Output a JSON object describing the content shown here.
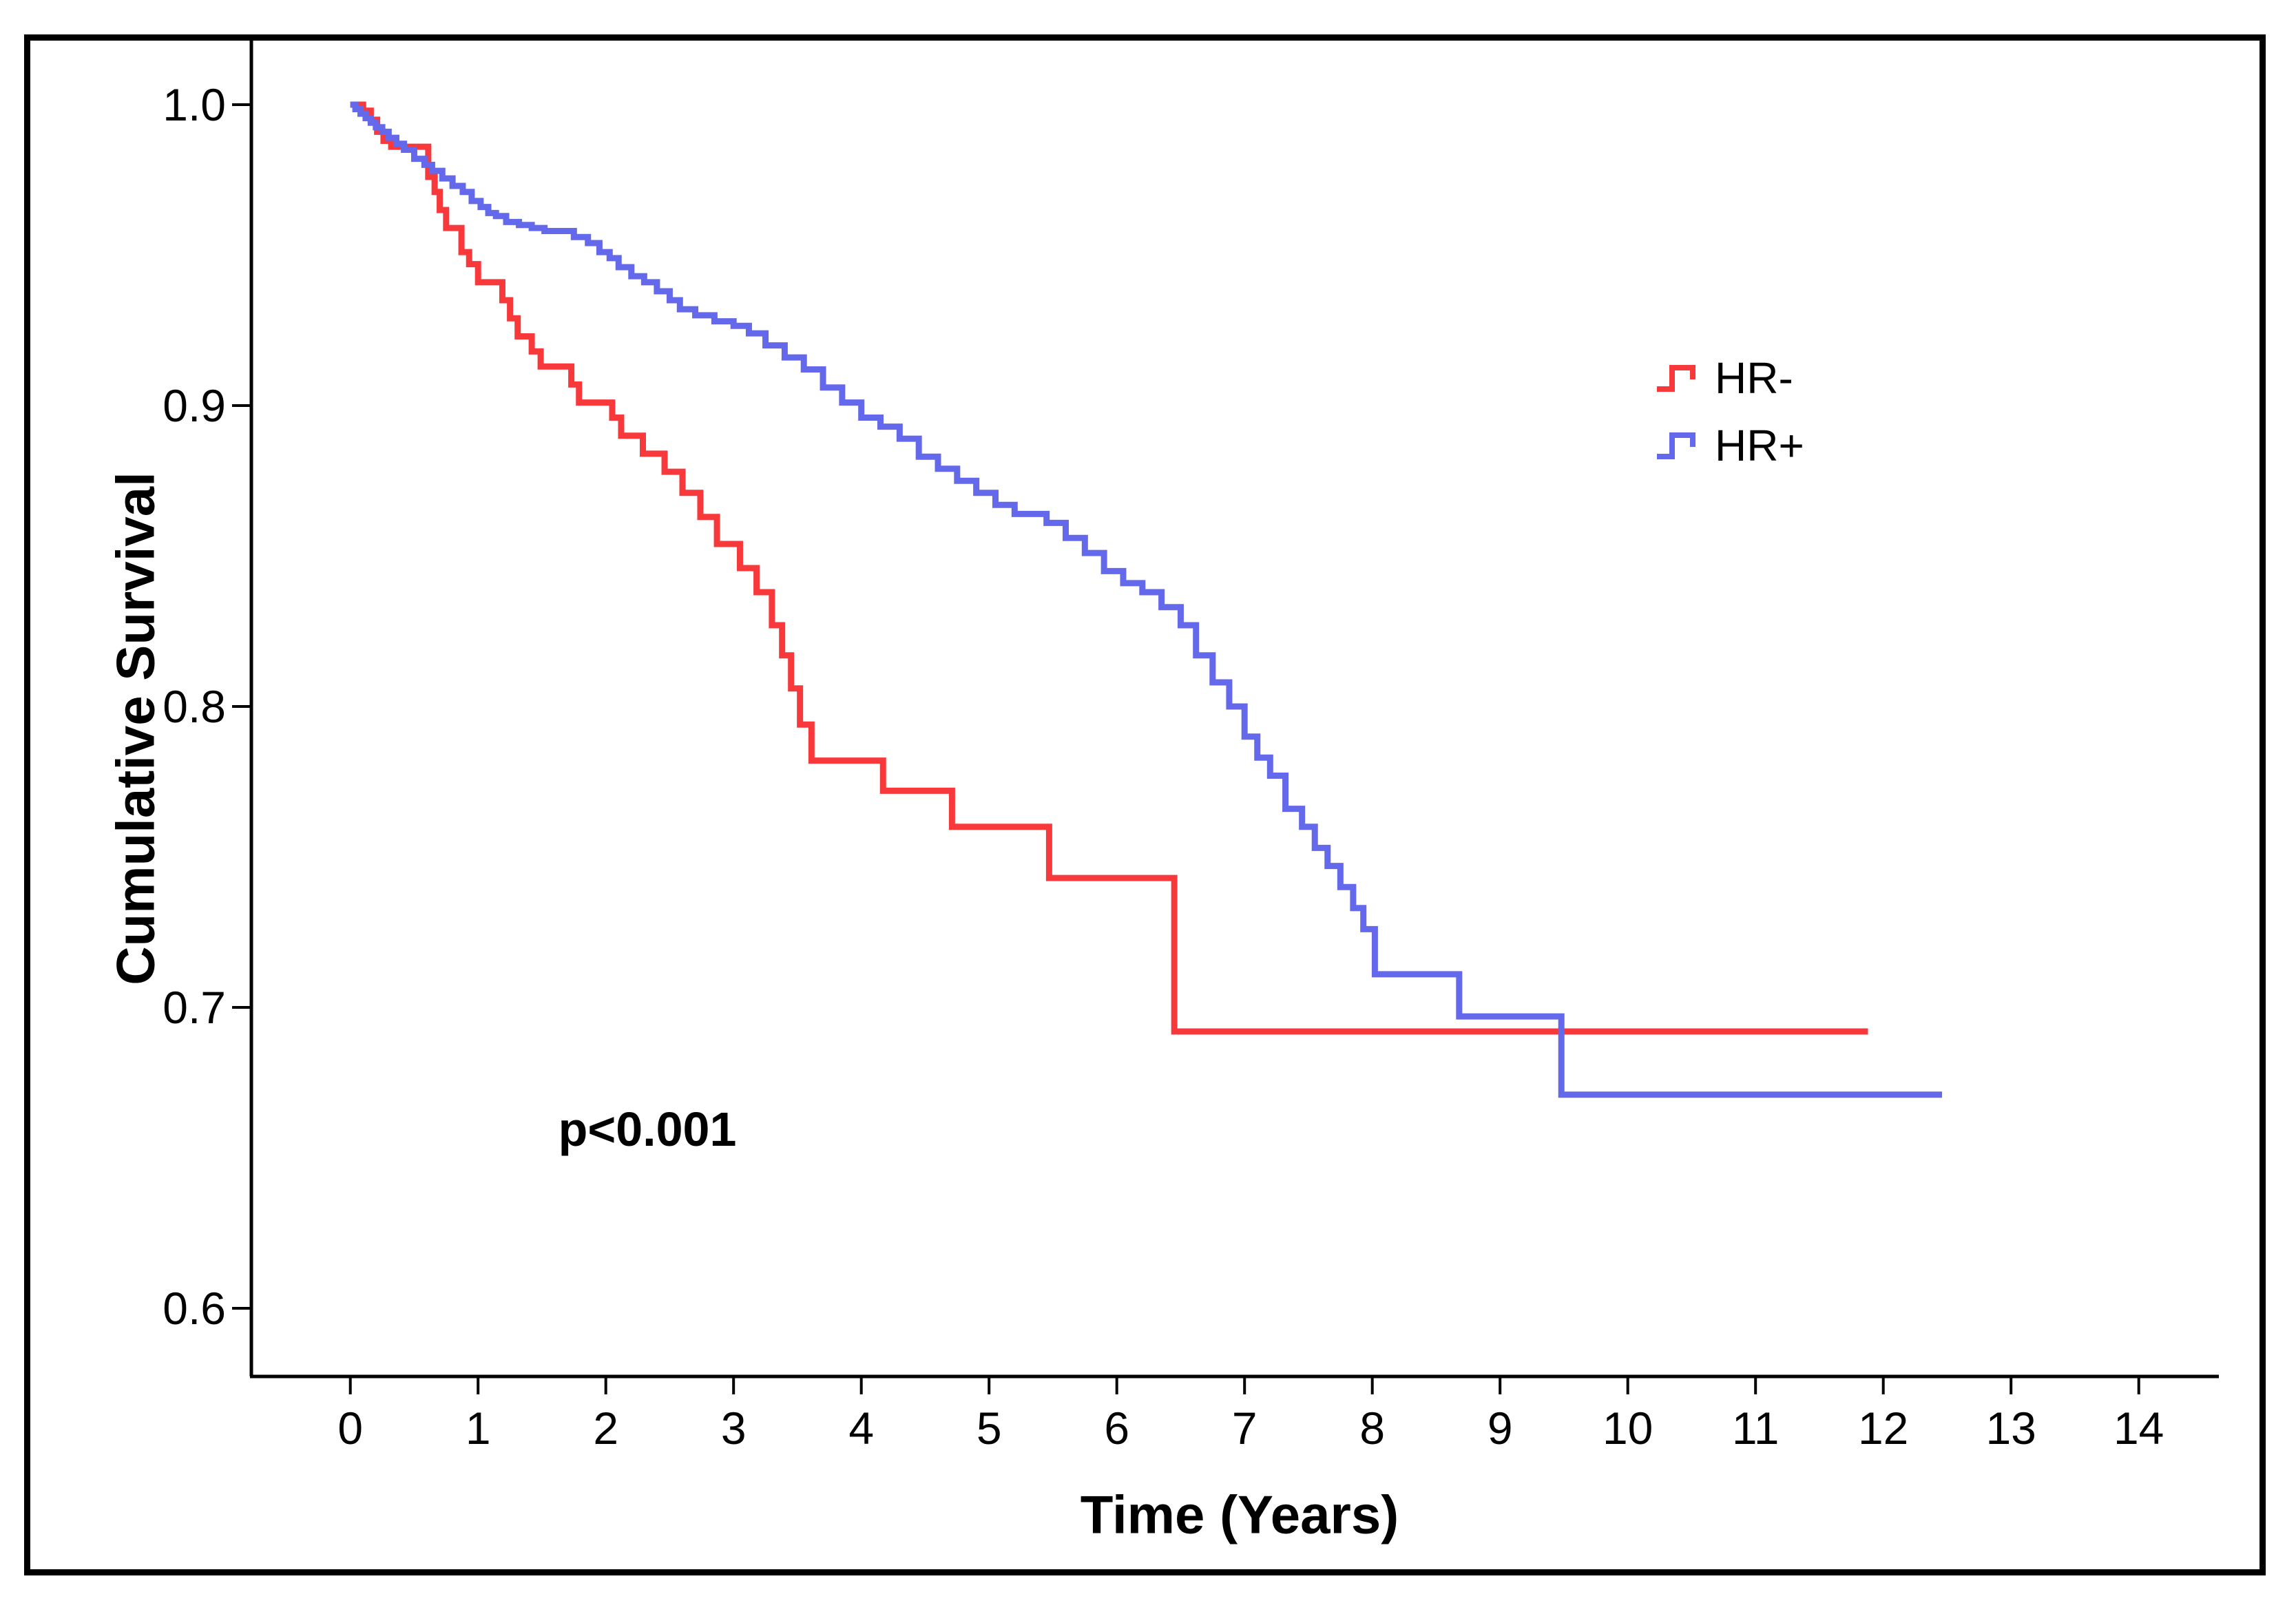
{
  "chart_data": {
    "type": "line",
    "subtype": "kaplan-meier-step-curves",
    "title": "",
    "xlabel": "Time (Years)",
    "ylabel": "Cumulative Survival",
    "annotation": "p<0.001",
    "grid": false,
    "legend_position": "upper-right-inside",
    "xlim": [
      -0.78,
      14.6
    ],
    "ylim": [
      0.578,
      1.023
    ],
    "x_ticks": [
      0,
      1,
      2,
      3,
      4,
      5,
      6,
      7,
      8,
      9,
      10,
      11,
      12,
      13,
      14
    ],
    "y_ticks": [
      1.0,
      0.9,
      0.8,
      0.7,
      0.6
    ],
    "series": [
      {
        "name": "HR-",
        "color": "#f8393b",
        "points": [
          [
            0,
            1.0
          ],
          [
            0.1,
            0.998
          ],
          [
            0.16,
            0.995
          ],
          [
            0.21,
            0.991
          ],
          [
            0.26,
            0.988
          ],
          [
            0.32,
            0.986
          ],
          [
            0.61,
            0.976
          ],
          [
            0.66,
            0.971
          ],
          [
            0.7,
            0.965
          ],
          [
            0.75,
            0.959
          ],
          [
            0.87,
            0.951
          ],
          [
            0.93,
            0.947
          ],
          [
            1.0,
            0.941
          ],
          [
            1.19,
            0.935
          ],
          [
            1.25,
            0.929
          ],
          [
            1.31,
            0.923
          ],
          [
            1.42,
            0.918
          ],
          [
            1.49,
            0.913
          ],
          [
            1.73,
            0.907
          ],
          [
            1.79,
            0.901
          ],
          [
            2.05,
            0.896
          ],
          [
            2.12,
            0.89
          ],
          [
            2.29,
            0.884
          ],
          [
            2.46,
            0.878
          ],
          [
            2.6,
            0.871
          ],
          [
            2.74,
            0.863
          ],
          [
            2.87,
            0.854
          ],
          [
            3.05,
            0.846
          ],
          [
            3.18,
            0.838
          ],
          [
            3.3,
            0.827
          ],
          [
            3.38,
            0.817
          ],
          [
            3.45,
            0.806
          ],
          [
            3.52,
            0.794
          ],
          [
            3.61,
            0.782
          ],
          [
            4.17,
            0.772
          ],
          [
            4.71,
            0.76
          ],
          [
            5.47,
            0.743
          ],
          [
            6.45,
            0.692
          ],
          [
            11.88,
            0.692
          ]
        ]
      },
      {
        "name": "HR+",
        "color": "#6468ea",
        "points": [
          [
            0,
            1.0
          ],
          [
            0.04,
            0.9985
          ],
          [
            0.08,
            0.997
          ],
          [
            0.12,
            0.9955
          ],
          [
            0.16,
            0.994
          ],
          [
            0.2,
            0.9925
          ],
          [
            0.25,
            0.991
          ],
          [
            0.3,
            0.989
          ],
          [
            0.36,
            0.987
          ],
          [
            0.42,
            0.985
          ],
          [
            0.5,
            0.982
          ],
          [
            0.58,
            0.98
          ],
          [
            0.64,
            0.978
          ],
          [
            0.72,
            0.9755
          ],
          [
            0.8,
            0.973
          ],
          [
            0.88,
            0.971
          ],
          [
            0.95,
            0.968
          ],
          [
            1.02,
            0.966
          ],
          [
            1.08,
            0.964
          ],
          [
            1.14,
            0.963
          ],
          [
            1.22,
            0.961
          ],
          [
            1.32,
            0.96
          ],
          [
            1.42,
            0.959
          ],
          [
            1.52,
            0.958
          ],
          [
            1.75,
            0.956
          ],
          [
            1.86,
            0.954
          ],
          [
            1.95,
            0.951
          ],
          [
            2.03,
            0.949
          ],
          [
            2.1,
            0.946
          ],
          [
            2.2,
            0.943
          ],
          [
            2.3,
            0.941
          ],
          [
            2.4,
            0.938
          ],
          [
            2.5,
            0.935
          ],
          [
            2.58,
            0.932
          ],
          [
            2.7,
            0.93
          ],
          [
            2.85,
            0.928
          ],
          [
            3.0,
            0.9265
          ],
          [
            3.12,
            0.924
          ],
          [
            3.25,
            0.92
          ],
          [
            3.4,
            0.916
          ],
          [
            3.55,
            0.912
          ],
          [
            3.7,
            0.906
          ],
          [
            3.85,
            0.901
          ],
          [
            4.0,
            0.896
          ],
          [
            4.15,
            0.893
          ],
          [
            4.3,
            0.889
          ],
          [
            4.45,
            0.883
          ],
          [
            4.6,
            0.879
          ],
          [
            4.75,
            0.875
          ],
          [
            4.9,
            0.871
          ],
          [
            5.05,
            0.867
          ],
          [
            5.2,
            0.864
          ],
          [
            5.45,
            0.861
          ],
          [
            5.6,
            0.856
          ],
          [
            5.75,
            0.851
          ],
          [
            5.9,
            0.845
          ],
          [
            6.05,
            0.841
          ],
          [
            6.2,
            0.838
          ],
          [
            6.35,
            0.833
          ],
          [
            6.5,
            0.827
          ],
          [
            6.62,
            0.817
          ],
          [
            6.75,
            0.808
          ],
          [
            6.88,
            0.8
          ],
          [
            7.0,
            0.79
          ],
          [
            7.1,
            0.783
          ],
          [
            7.2,
            0.777
          ],
          [
            7.32,
            0.766
          ],
          [
            7.45,
            0.76
          ],
          [
            7.55,
            0.753
          ],
          [
            7.65,
            0.747
          ],
          [
            7.75,
            0.74
          ],
          [
            7.85,
            0.733
          ],
          [
            7.93,
            0.726
          ],
          [
            8.02,
            0.711
          ],
          [
            8.68,
            0.697
          ],
          [
            9.48,
            0.671
          ],
          [
            12.46,
            0.671
          ]
        ]
      }
    ]
  }
}
